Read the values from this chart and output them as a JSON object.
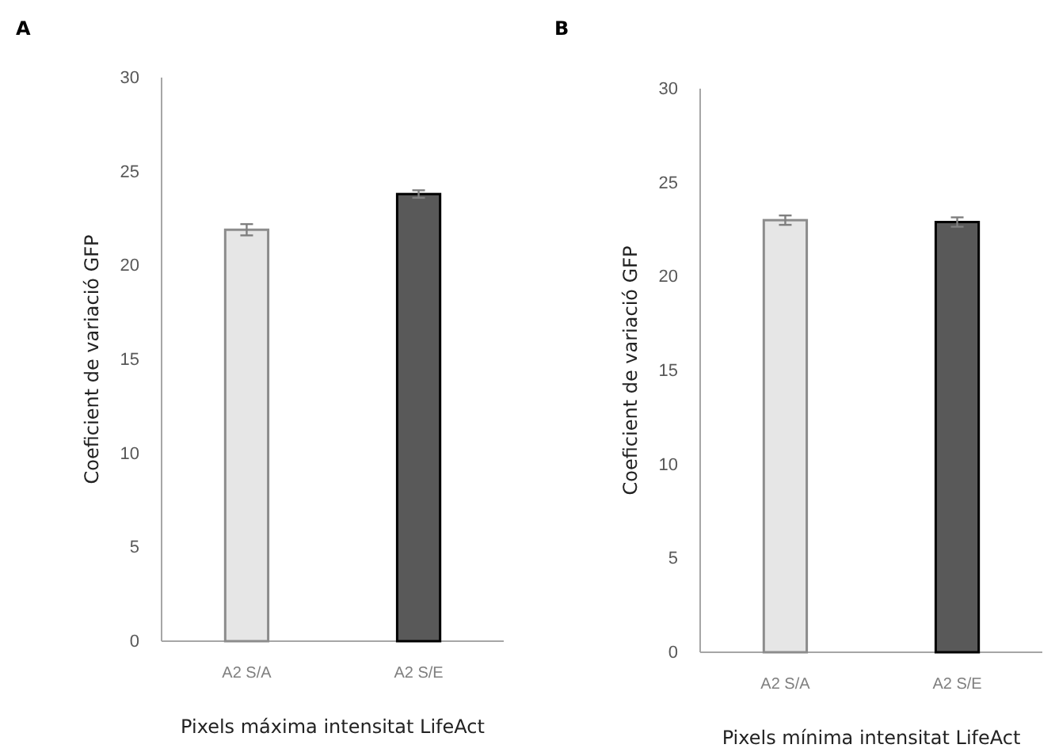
{
  "chart_data": [
    {
      "type": "bar",
      "title": "A",
      "xlabel": "Pixels máxima intensitat LifeAct",
      "ylabel": "Coeficient de variació GFP",
      "categories": [
        "A2 S/A",
        "A2 S/E"
      ],
      "values": [
        21.9,
        23.8
      ],
      "errors": [
        0.3,
        0.2
      ],
      "colors": [
        "#e6e6e6",
        "#595959"
      ],
      "ylim": [
        0,
        30
      ],
      "yticks": [
        0,
        5,
        10,
        15,
        20,
        25,
        30
      ],
      "grid": false
    },
    {
      "type": "bar",
      "title": "B",
      "xlabel": "Pixels mínima intensitat LifeAct",
      "ylabel": "Coeficient de variació GFP",
      "categories": [
        "A2 S/A",
        "A2 S/E"
      ],
      "values": [
        23.0,
        22.9
      ],
      "errors": [
        0.25,
        0.25
      ],
      "colors": [
        "#e6e6e6",
        "#595959"
      ],
      "ylim": [
        0,
        30
      ],
      "yticks": [
        0,
        5,
        10,
        15,
        20,
        25,
        30
      ],
      "grid": false
    }
  ]
}
